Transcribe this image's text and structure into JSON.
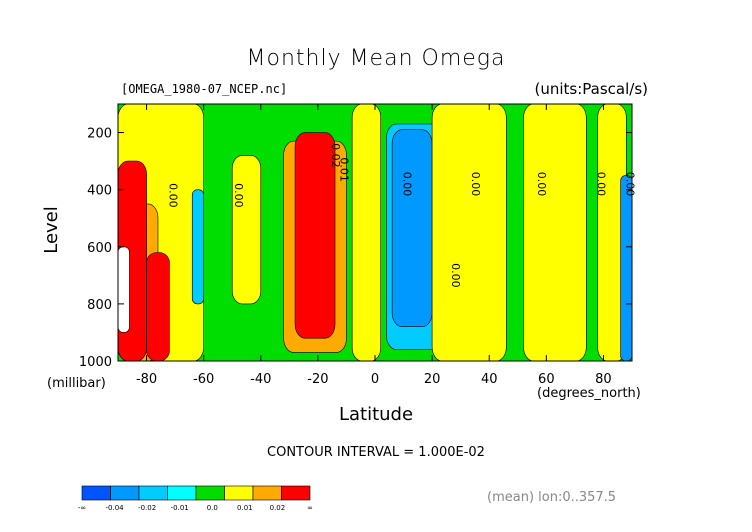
{
  "chart_data": {
    "type": "heatmap",
    "title": "Monthly Mean Omega",
    "file_label": "[OMEGA_1980-07_NCEP.nc]",
    "units_label": "(units:Pascal/s)",
    "xlabel": "Latitude",
    "x_unit": "(degrees_north)",
    "ylabel": "Level",
    "y_unit": "(millibar)",
    "xlim": [
      -90,
      90
    ],
    "ylim": [
      1000,
      100
    ],
    "x_ticks": [
      -80,
      -60,
      -40,
      -20,
      0,
      20,
      40,
      60,
      80
    ],
    "x_tick_labels": [
      "-80",
      "-60",
      "-40",
      "-20",
      "0",
      "20",
      "40",
      "60",
      "80"
    ],
    "y_ticks": [
      200,
      400,
      600,
      800,
      1000
    ],
    "y_tick_labels": [
      "200",
      "400",
      "600",
      "800",
      "1000"
    ],
    "contour_interval_text": "CONTOUR INTERVAL = 1.000E-02",
    "mean_text": "(mean) lon:0..357.5",
    "colorbar": {
      "bins": [
        {
          "color": "#0055ff",
          "range": [
            null,
            -0.04
          ]
        },
        {
          "color": "#0099ff",
          "range": [
            -0.04,
            -0.02
          ]
        },
        {
          "color": "#00ccff",
          "range": [
            -0.02,
            -0.01
          ]
        },
        {
          "color": "#00ffff",
          "range": [
            -0.01,
            0.0
          ]
        },
        {
          "color": "#00dd00",
          "range": [
            0.0,
            0.005
          ]
        },
        {
          "color": "#ffff00",
          "range": [
            0.005,
            0.01
          ]
        },
        {
          "color": "#ffaa00",
          "range": [
            0.01,
            0.02
          ]
        },
        {
          "color": "#ff0000",
          "range": [
            0.02,
            null
          ]
        }
      ],
      "labels": [
        "-∞",
        "-0.04",
        "-0.02",
        "-0.01",
        "0.0",
        "0.01",
        "0.02",
        "∞"
      ]
    },
    "regions": [
      {
        "fill": "#00dd00",
        "lat": [
          -90,
          90
        ],
        "lev": [
          100,
          1000
        ]
      },
      {
        "fill": "#ffff00",
        "lat": [
          -90,
          -60
        ],
        "lev": [
          100,
          1000
        ]
      },
      {
        "fill": "#ffaa00",
        "lat": [
          -90,
          -76
        ],
        "lev": [
          450,
          1000
        ]
      },
      {
        "fill": "#ff0000",
        "lat": [
          -90,
          -80
        ],
        "lev": [
          300,
          1000
        ]
      },
      {
        "fill": "#ff0000",
        "lat": [
          -80,
          -72
        ],
        "lev": [
          620,
          1000
        ]
      },
      {
        "fill": "#ffffff",
        "lat": [
          -90,
          -86
        ],
        "lev": [
          600,
          900
        ]
      },
      {
        "fill": "#00ccff",
        "lat": [
          -64,
          -60
        ],
        "lev": [
          400,
          800
        ]
      },
      {
        "fill": "#ffff00",
        "lat": [
          -50,
          -40
        ],
        "lev": [
          280,
          800
        ]
      },
      {
        "fill": "#ffaa00",
        "lat": [
          -32,
          -10
        ],
        "lev": [
          230,
          970
        ]
      },
      {
        "fill": "#ff0000",
        "lat": [
          -28,
          -14
        ],
        "lev": [
          200,
          920
        ]
      },
      {
        "fill": "#ffff00",
        "lat": [
          -8,
          2
        ],
        "lev": [
          100,
          1000
        ]
      },
      {
        "fill": "#00ccff",
        "lat": [
          4,
          24
        ],
        "lev": [
          170,
          960
        ]
      },
      {
        "fill": "#0099ff",
        "lat": [
          6,
          20
        ],
        "lev": [
          190,
          880
        ]
      },
      {
        "fill": "#ffff00",
        "lat": [
          20,
          46
        ],
        "lev": [
          100,
          1000
        ]
      },
      {
        "fill": "#ffff00",
        "lat": [
          52,
          74
        ],
        "lev": [
          100,
          1000
        ]
      },
      {
        "fill": "#ffaa00",
        "lat": [
          80,
          84
        ],
        "lev": [
          740,
          880
        ]
      },
      {
        "fill": "#ffff00",
        "lat": [
          78,
          88
        ],
        "lev": [
          100,
          1000
        ]
      },
      {
        "fill": "#0099ff",
        "lat": [
          86,
          90
        ],
        "lev": [
          350,
          1000
        ]
      }
    ],
    "contour_labels": [
      {
        "text": "0.00",
        "lat": -72,
        "lev": 420
      },
      {
        "text": "0.00",
        "lat": -49,
        "lev": 420
      },
      {
        "text": "0.02",
        "lat": -15,
        "lev": 280
      },
      {
        "text": "0.01",
        "lat": -12,
        "lev": 330
      },
      {
        "text": "0.00",
        "lat": 10,
        "lev": 380
      },
      {
        "text": "0.00",
        "lat": 34,
        "lev": 380
      },
      {
        "text": "0.00",
        "lat": 57,
        "lev": 380
      },
      {
        "text": "0.00",
        "lat": 78,
        "lev": 380
      },
      {
        "text": "0.00",
        "lat": 88,
        "lev": 380
      },
      {
        "text": "0.00",
        "lat": 27,
        "lev": 700
      }
    ]
  }
}
